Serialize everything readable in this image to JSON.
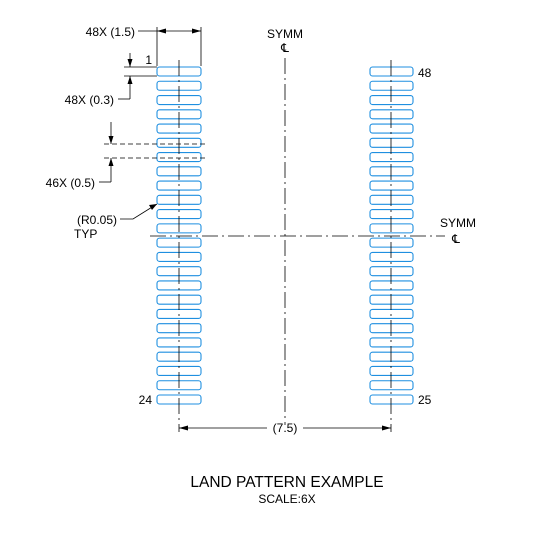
{
  "pads": {
    "count_per_column": 24,
    "left_column": {
      "first_pin": "1",
      "last_pin": "24"
    },
    "right_column": {
      "first_pin": "25",
      "last_pin": "48"
    },
    "outline_color": "#1f8fe0"
  },
  "dimensions": {
    "pad_length": "48X (1.5)",
    "pad_width": "48X (0.3)",
    "pitch": "46X (0.5)",
    "corner_radius": "(R0.05)",
    "corner_radius_note": "TYP",
    "row_span": "(7.5)"
  },
  "symmetry": {
    "vertical_label": "SYMM",
    "horizontal_label": "SYMM",
    "centerline_symbol": "℄"
  },
  "title": {
    "main": "LAND PATTERN EXAMPLE",
    "scale": "SCALE:6X"
  }
}
